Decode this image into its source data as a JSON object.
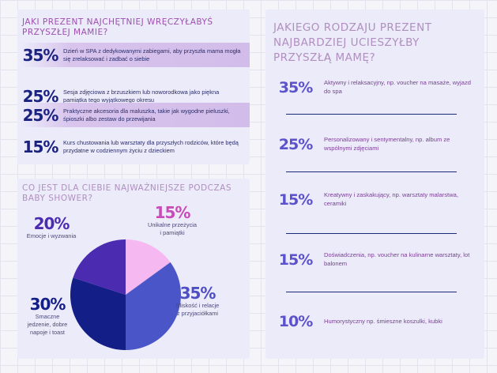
{
  "colors": {
    "accent_text": "#9e4fb0",
    "navy": "#1a2280",
    "violet": "#5b52cc",
    "pie": [
      "#f6b8f0",
      "#4a56c8",
      "#131e87",
      "#4b2bb0"
    ]
  },
  "panel_gifts": {
    "title": "JAKI PREZENT NAJCHĘTNIEJ WRĘCZYŁABYŚ PRZYSZŁEJ MAMIE?",
    "rows": [
      {
        "pct": "35%",
        "text": "Dzień w SPA z dedykowanymi zabiegami, aby przyszła mama mogła się zrelaksować i zadbać o siebie"
      },
      {
        "pct": "25%",
        "text": "Sesja zdjęciowa z brzuszkiem lub noworodkowa jako piękna pamiątka tego wyjątkowego okresu"
      },
      {
        "pct": "25%",
        "text": "Praktyczne akcesoria dla maluszka, takie jak wygodne pieluszki, śpioszki albo zestaw do przewijania"
      },
      {
        "pct": "15%",
        "text": "Kurs chustowania lub warsztaty dla przyszłych rodziców, które będą przydatne w codziennym życiu z dzieckiem"
      }
    ]
  },
  "panel_shower": {
    "title": "CO JEST DLA CIEBIE NAJWAŻNIEJSZE PODCZAS BABY SHOWER?",
    "labels": [
      {
        "pct": "15%",
        "text": "Unikalne przeżycia i pamiątki"
      },
      {
        "pct": "35%",
        "text": "Bliskość i relacje z przyjaciółkami"
      },
      {
        "pct": "30%",
        "text": "Smaczne jedzenie, dobre napoje i toast"
      },
      {
        "pct": "20%",
        "text": "Emocje i wyzwania"
      }
    ]
  },
  "panel_mom": {
    "title": "JAKIEGO RODZAJU PREZENT NAJBARDZIEJ UCIESZYŁBY PRZYSZŁĄ MAMĘ?",
    "rows": [
      {
        "pct": "35%",
        "text": "Aktywny i relaksacyjny, np. voucher na masaże, wyjazd do spa"
      },
      {
        "pct": "25%",
        "text": "Personalizowany i sentymentalny, np. album ze wspólnymi zdjęciami"
      },
      {
        "pct": "15%",
        "text": "Kreatywny i zaskakujący, np. warsztaty malarstwa, ceramiki"
      },
      {
        "pct": "15%",
        "text": "Doświadczenia, np. voucher na kulinarne warsztaty, lot balonem"
      },
      {
        "pct": "10%",
        "text": "Humorystyczny np. śmieszne koszulki, kubki"
      }
    ]
  },
  "chart_data": [
    {
      "type": "table",
      "title": "JAKI PREZENT NAJCHĘTNIEJ WRĘCZYŁABYŚ PRZYSZŁEJ MAMIE?",
      "categories": [
        "Dzień w SPA z dedykowanymi zabiegami, aby przyszła mama mogła się zrelaksować i zadbać o siebie",
        "Sesja zdjęciowa z brzuszkiem lub noworodkowa jako piękna pamiątka tego wyjątkowego okresu",
        "Praktyczne akcesoria dla maluszka, takie jak wygodne pieluszki, śpioszki albo zestaw do przewijania",
        "Kurs chustowania lub warsztaty dla przyszłych rodziców, które będą przydatne w codziennym życiu z dzieckiem"
      ],
      "values": [
        35,
        25,
        25,
        15
      ]
    },
    {
      "type": "pie",
      "title": "CO JEST DLA CIEBIE NAJWAŻNIEJSZE PODCZAS BABY SHOWER?",
      "categories": [
        "Unikalne przeżycia i pamiątki",
        "Bliskość i relacje z przyjaciółkami",
        "Smaczne jedzenie, dobre napoje i toast",
        "Emocje i wyzwania"
      ],
      "values": [
        15,
        35,
        30,
        20
      ],
      "colors": [
        "#f6b8f0",
        "#4a56c8",
        "#131e87",
        "#4b2bb0"
      ]
    },
    {
      "type": "table",
      "title": "JAKIEGO RODZAJU PREZENT NAJBARDZIEJ UCIESZYŁBY PRZYSZŁĄ MAMĘ?",
      "categories": [
        "Aktywny i relaksacyjny, np. voucher na masaże, wyjazd do spa",
        "Personalizowany i sentymentalny, np. album ze wspólnymi zdjęciami",
        "Kreatywny i zaskakujący, np. warsztaty malarstwa, ceramiki",
        "Doświadczenia, np. voucher na kulinarne warsztaty, lot balonem",
        "Humorystyczny np. śmieszne koszulki, kubki"
      ],
      "values": [
        35,
        25,
        15,
        15,
        10
      ]
    }
  ]
}
